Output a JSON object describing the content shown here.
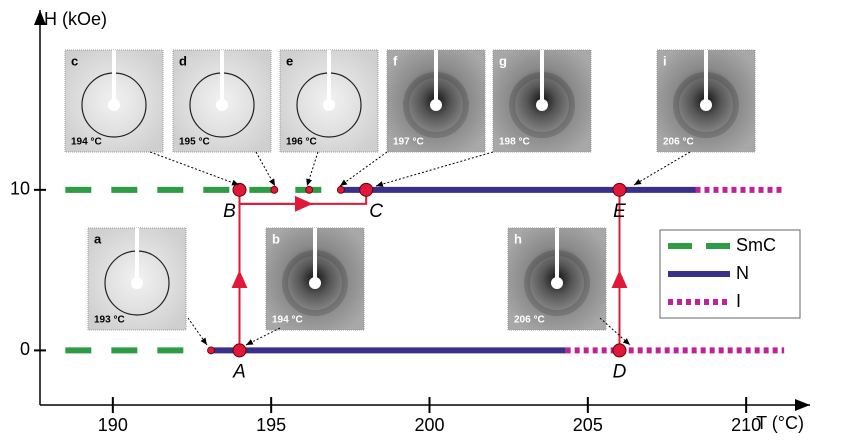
{
  "chart_data": {
    "type": "phase",
    "x_label": "T (°C)",
    "y_label": "H (kOe)",
    "xlim": [
      187.7,
      211.7
    ],
    "ylim": [
      -3.4,
      21.2
    ],
    "xticks": [
      190,
      195,
      200,
      205,
      210
    ],
    "yticks": [
      0,
      10
    ],
    "series": [
      {
        "name": "SmC",
        "color": "#2e9b45",
        "dash": "dashed",
        "x": [
          188.5,
          192.4,
          null,
          188.5,
          197.2
        ],
        "values": [
          0,
          0,
          null,
          10,
          10
        ]
      },
      {
        "name": "N",
        "color": "#3a2f8a",
        "dash": "solid",
        "x": [
          193.1,
          204.3,
          null,
          197.2,
          208.4
        ],
        "values": [
          0,
          0,
          null,
          10,
          10
        ]
      },
      {
        "name": "I",
        "color": "#c0219a",
        "dash": "dotted",
        "x": [
          204.3,
          211.2,
          null,
          208.4,
          211.2
        ],
        "values": [
          0,
          0,
          null,
          10,
          10
        ]
      }
    ],
    "points": [
      {
        "label": "A",
        "x": 194,
        "y": 0
      },
      {
        "label": "B",
        "x": 194,
        "y": 10
      },
      {
        "label": "C",
        "x": 198,
        "y": 10
      },
      {
        "label": "D",
        "x": 206,
        "y": 0
      },
      {
        "label": "E",
        "x": 206,
        "y": 10
      }
    ],
    "transitions": [
      {
        "x": 193.1,
        "y": 0
      },
      {
        "x": 195.1,
        "y": 10
      },
      {
        "x": 196.2,
        "y": 10
      },
      {
        "x": 197.2,
        "y": 10
      }
    ],
    "insets": [
      {
        "label": "a",
        "temperature": "193 °C"
      },
      {
        "label": "b",
        "temperature": "194 °C"
      },
      {
        "label": "c",
        "temperature": "194 °C"
      },
      {
        "label": "d",
        "temperature": "195 °C"
      },
      {
        "label": "e",
        "temperature": "196 °C"
      },
      {
        "label": "f",
        "temperature": "197 °C"
      },
      {
        "label": "g",
        "temperature": "198 °C"
      },
      {
        "label": "h",
        "temperature": "206 °C"
      },
      {
        "label": "i",
        "temperature": "206 °C"
      }
    ]
  }
}
